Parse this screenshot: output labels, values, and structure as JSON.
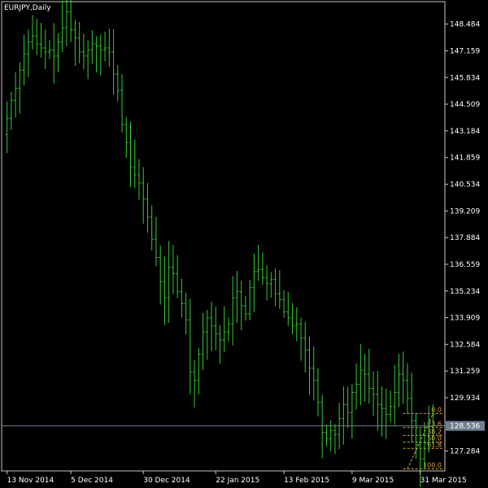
{
  "chart_title": "EURJPY,Daily",
  "colors": {
    "background": "#000000",
    "frame": "#c8c8c8",
    "candle": "#32cd32",
    "fib": "#d9a53a",
    "current_price_line": "#708090",
    "current_price_badge_bg": "#708090",
    "text": "#ffffff"
  },
  "chart_data": {
    "type": "candlestick",
    "title": "EURJPY,Daily",
    "ylim": [
      126.3,
      149.6
    ],
    "y_ticks": [
      "148.484",
      "147.159",
      "145.834",
      "144.509",
      "143.184",
      "141.859",
      "140.534",
      "139.209",
      "137.884",
      "136.559",
      "135.234",
      "133.909",
      "132.584",
      "131.259",
      "129.934",
      "127.284"
    ],
    "x_ticks": [
      "13 Nov 2014",
      "5 Dec 2014",
      "30 Dec 2014",
      "22 Jan 2015",
      "13 Feb 2015",
      "9 Mar 2015",
      "31 Mar 2015"
    ],
    "current_price": "128.536",
    "fibonacci_levels": [
      "0.0",
      "23.6",
      "38.2",
      "50.0",
      "61.8",
      "100.0"
    ],
    "fibonacci_level_prices": [
      129.15,
      128.45,
      128.06,
      127.73,
      127.42,
      126.4
    ],
    "candles_close": [
      143.8,
      144.7,
      145.3,
      146.2,
      147.0,
      147.6,
      147.9,
      147.5,
      147.3,
      147.1,
      147.2,
      146.9,
      147.6,
      148.3,
      149.1,
      148.2,
      147.8,
      147.1,
      146.9,
      147.2,
      147.5,
      147.4,
      147.2,
      147.3,
      147.1,
      146.0,
      145.2,
      143.5,
      142.6,
      141.4,
      141.0,
      140.6,
      139.8,
      138.9,
      137.8,
      136.9,
      135.7,
      134.9,
      136.4,
      136.1,
      135.2,
      134.6,
      133.8,
      131.2,
      130.8,
      132.1,
      133.2,
      133.9,
      133.5,
      133.1,
      132.8,
      133.2,
      133.6,
      134.9,
      135.2,
      134.5,
      134.1,
      135.4,
      136.2,
      136.3,
      135.9,
      135.6,
      135.8,
      135.1,
      134.8,
      134.2,
      133.9,
      133.5,
      133.6,
      132.9,
      132.3,
      131.4,
      130.8,
      129.7,
      128.2,
      127.9,
      128.3,
      128.1,
      128.9,
      129.6,
      129.2,
      130.2,
      130.6,
      131.3,
      131.1,
      130.4,
      130.1,
      129.6,
      129.4,
      129.1,
      129.5,
      130.2,
      131.1,
      130.8,
      129.9,
      128.8,
      127.6,
      126.9,
      127.7,
      128.5,
      129.1
    ]
  }
}
